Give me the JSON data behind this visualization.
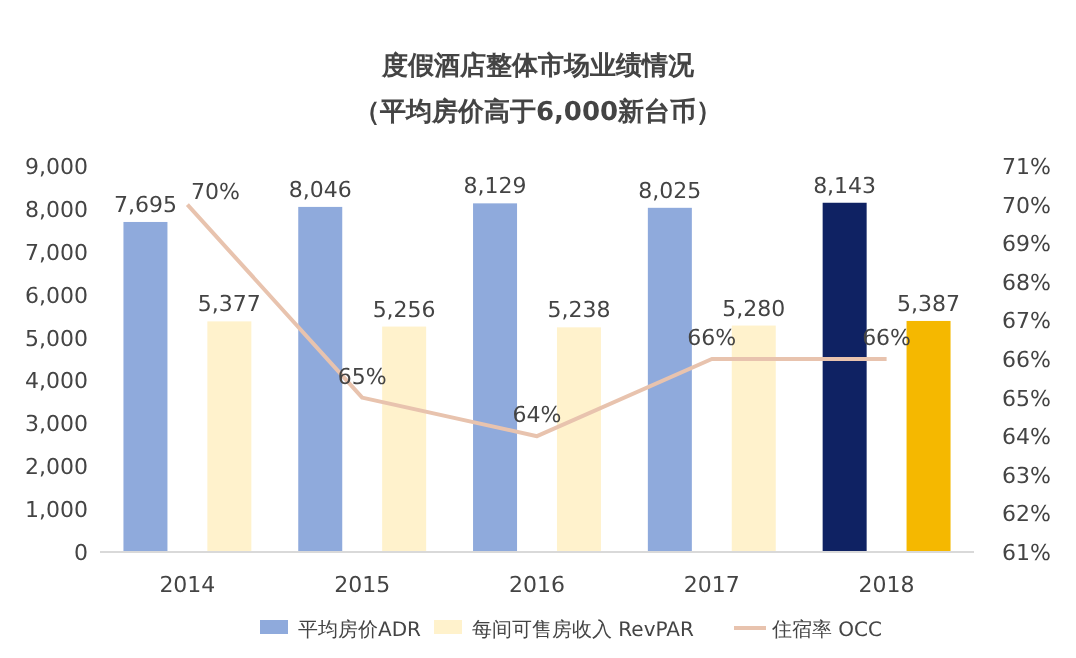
{
  "chart_data": {
    "type": "bar",
    "title": "度假酒店整体市场业绩情况",
    "subtitle": "（平均房价高于6,000新台币）",
    "categories": [
      "2014",
      "2015",
      "2016",
      "2017",
      "2018"
    ],
    "series": [
      {
        "name": "平均房价ADR",
        "color": "#8faadc",
        "colors": [
          "#8faadc",
          "#8faadc",
          "#8faadc",
          "#8faadc",
          "#0f2263"
        ],
        "values": [
          7695,
          8046,
          8129,
          8025,
          8143
        ],
        "value_labels": [
          "7,695",
          "8,046",
          "8,129",
          "8,025",
          "8,143"
        ]
      },
      {
        "name": "每间可售房收入 RevPAR",
        "color": "#fff2cc",
        "colors": [
          "#fff2cc",
          "#fff2cc",
          "#fff2cc",
          "#fff2cc",
          "#f5b800"
        ],
        "values": [
          5377,
          5256,
          5238,
          5280,
          5387
        ],
        "value_labels": [
          "5,377",
          "5,256",
          "5,238",
          "5,280",
          "5,387"
        ]
      },
      {
        "name": "住宿率 OCC",
        "type": "line",
        "axis": "y2",
        "color": "#e8c3ae",
        "values": [
          70,
          65,
          64,
          66,
          66
        ],
        "value_labels": [
          "70%",
          "65%",
          "64%",
          "66%",
          "66%"
        ]
      }
    ],
    "ylim": [
      0,
      9000
    ],
    "yticks": [
      {
        "value": 0,
        "label": "0"
      },
      {
        "value": 1000,
        "label": "1,000"
      },
      {
        "value": 2000,
        "label": "2,000"
      },
      {
        "value": 3000,
        "label": "3,000"
      },
      {
        "value": 4000,
        "label": "4,000"
      },
      {
        "value": 5000,
        "label": "5,000"
      },
      {
        "value": 6000,
        "label": "6,000"
      },
      {
        "value": 7000,
        "label": "7,000"
      },
      {
        "value": 8000,
        "label": "8,000"
      },
      {
        "value": 9000,
        "label": "9,000"
      }
    ],
    "y2lim": [
      61,
      71
    ],
    "y2ticks": [
      {
        "value": 61,
        "label": "61%"
      },
      {
        "value": 62,
        "label": "62%"
      },
      {
        "value": 63,
        "label": "63%"
      },
      {
        "value": 64,
        "label": "64%"
      },
      {
        "value": 65,
        "label": "65%"
      },
      {
        "value": 66,
        "label": "66%"
      },
      {
        "value": 67,
        "label": "67%"
      },
      {
        "value": 68,
        "label": "68%"
      },
      {
        "value": 69,
        "label": "69%"
      },
      {
        "value": 70,
        "label": "70%"
      },
      {
        "value": 71,
        "label": "71%"
      }
    ],
    "grid": false,
    "legend": "bottom",
    "marker": "none",
    "line_style": "solid"
  }
}
